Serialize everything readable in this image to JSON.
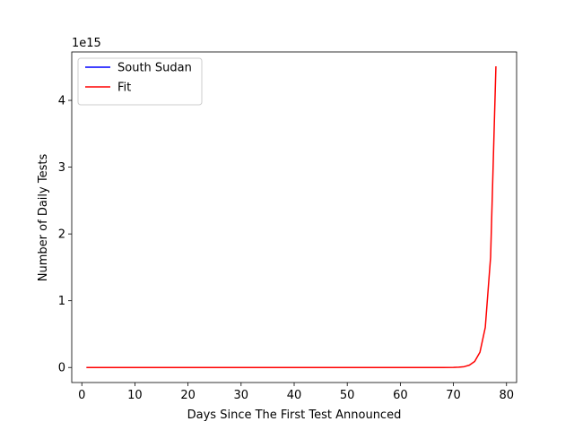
{
  "chart_data": {
    "type": "line",
    "xlabel": "Days Since The First Test Announced",
    "ylabel": "Number of Daily Tests",
    "y_offset_text": "1e15",
    "y_scale": 1000000000000000.0,
    "xlim": [
      -1.9,
      81.9
    ],
    "ylim": [
      -0.225,
      4.725
    ],
    "xticks": [
      0,
      10,
      20,
      30,
      40,
      50,
      60,
      70,
      80
    ],
    "yticks": [
      0,
      1,
      2,
      3,
      4
    ],
    "grid": false,
    "legend_position": "upper-left",
    "series": [
      {
        "name": "South Sudan",
        "color": "#0000ff",
        "x": [
          1,
          48
        ],
        "y": [
          0,
          0
        ]
      },
      {
        "name": "Fit",
        "color": "#ff0000",
        "x": [
          1,
          10,
          20,
          30,
          40,
          50,
          60,
          65,
          68,
          70,
          71,
          72,
          73,
          74,
          75,
          76,
          77,
          78
        ],
        "y": [
          0,
          0,
          0,
          0,
          0,
          0,
          0,
          0,
          0,
          0.001,
          0.004,
          0.012,
          0.035,
          0.09,
          0.23,
          0.6,
          1.65,
          4.5
        ]
      }
    ]
  }
}
